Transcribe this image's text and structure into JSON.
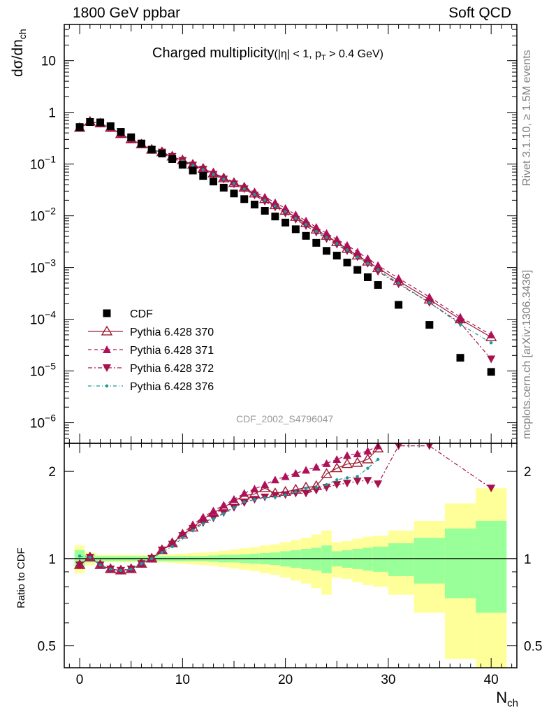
{
  "header": {
    "left": "1800 GeV ppbar",
    "right": "Soft QCD"
  },
  "plot": {
    "title_main": "Charged multiplicity",
    "title_sub": "(|η| < 1, p",
    "title_sub_T": "T",
    "title_sub_rest": " > 0.4 GeV)",
    "ylabel_main": "dσ/dn",
    "ylabel_sub": "ch",
    "analysis_id": "CDF_2002_S4796047"
  },
  "ratio": {
    "ylabel": "Ratio to CDF"
  },
  "xaxis": {
    "label_main": "N",
    "label_sub": "ch"
  },
  "side": {
    "rivet": "Rivet 3.1.10, ≥ 1.5M events",
    "mcplots": "mcplots.cern.ch [arXiv:1306.3436]"
  },
  "colors": {
    "data": "#000000",
    "p370": "#9b1b30",
    "p371": "#b0105a",
    "p372": "#a8124a",
    "p376": "#1a9a9a",
    "band_inner": "#99ff99",
    "band_outer": "#ffff99"
  },
  "chart_data": [
    {
      "type": "scatter",
      "name": "main",
      "yscale": "log",
      "xlim": [
        -1.5,
        42.5
      ],
      "ylim": [
        4e-07,
        50
      ],
      "ytick_labels": [
        "10^-6",
        "10^-5",
        "10^-4",
        "10^-3",
        "10^-2",
        "10^-1",
        "1",
        "10"
      ],
      "xtick_labels": [
        "0",
        "10",
        "20",
        "30",
        "40"
      ],
      "legend": {
        "position": "bottom-left",
        "entries": [
          "CDF",
          "Pythia 6.428 370",
          "Pythia 6.428 371",
          "Pythia 6.428 372",
          "Pythia 6.428 376"
        ]
      },
      "data": {
        "name": "CDF",
        "x": [
          0,
          1,
          2,
          3,
          4,
          5,
          6,
          7,
          8,
          9,
          10,
          11,
          12,
          13,
          14,
          15,
          16,
          17,
          18,
          19,
          20,
          21,
          22,
          23,
          24,
          25,
          26,
          27,
          28,
          29,
          31,
          34,
          37,
          40
        ],
        "y": [
          0.52,
          0.65,
          0.64,
          0.54,
          0.42,
          0.33,
          0.25,
          0.19,
          0.16,
          0.125,
          0.097,
          0.075,
          0.059,
          0.046,
          0.035,
          0.027,
          0.021,
          0.0165,
          0.0125,
          0.0097,
          0.0074,
          0.0055,
          0.0041,
          0.003,
          0.0021,
          0.0017,
          0.00125,
          0.0009,
          0.00065,
          0.00046,
          0.00019,
          7.8e-05,
          1.8e-05,
          9.6e-06
        ]
      },
      "series": [
        {
          "name": "Pythia 6.428 370",
          "marker": "open-triangle-up",
          "line": "solid",
          "x": [
            0,
            1,
            2,
            3,
            4,
            5,
            6,
            7,
            8,
            9,
            10,
            11,
            12,
            13,
            14,
            15,
            16,
            17,
            18,
            19,
            20,
            21,
            22,
            23,
            24,
            25,
            26,
            27,
            28,
            29,
            31,
            34,
            37,
            40
          ],
          "y": [
            0.5,
            0.66,
            0.61,
            0.5,
            0.38,
            0.3,
            0.24,
            0.19,
            0.17,
            0.14,
            0.118,
            0.097,
            0.081,
            0.066,
            0.053,
            0.043,
            0.035,
            0.027,
            0.021,
            0.016,
            0.0125,
            0.0095,
            0.0072,
            0.0054,
            0.0041,
            0.0031,
            0.0023,
            0.0017,
            0.0013,
            0.00098,
            0.00055,
            0.00024,
            0.0001,
            4.5e-05
          ]
        },
        {
          "name": "Pythia 6.428 371",
          "marker": "filled-triangle-up",
          "line": "dashed",
          "x": [
            0,
            1,
            2,
            3,
            4,
            5,
            6,
            7,
            8,
            9,
            10,
            11,
            12,
            13,
            14,
            15,
            16,
            17,
            18,
            19,
            20,
            21,
            22,
            23,
            24,
            25,
            26,
            27,
            28,
            29,
            31,
            34,
            37,
            40
          ],
          "y": [
            0.5,
            0.66,
            0.61,
            0.5,
            0.38,
            0.3,
            0.24,
            0.19,
            0.17,
            0.14,
            0.118,
            0.098,
            0.082,
            0.067,
            0.055,
            0.045,
            0.036,
            0.029,
            0.023,
            0.018,
            0.014,
            0.0105,
            0.008,
            0.006,
            0.0046,
            0.0035,
            0.0027,
            0.002,
            0.0015,
            0.0011,
            0.00062,
            0.00027,
            0.00011,
            5e-05
          ]
        },
        {
          "name": "Pythia 6.428 372",
          "marker": "filled-triangle-down",
          "line": "dash-dot",
          "x": [
            0,
            1,
            2,
            3,
            4,
            5,
            6,
            7,
            8,
            9,
            10,
            11,
            12,
            13,
            14,
            15,
            16,
            17,
            18,
            19,
            20,
            21,
            22,
            23,
            24,
            25,
            26,
            27,
            28,
            29,
            31,
            34,
            37,
            40
          ],
          "y": [
            0.5,
            0.66,
            0.61,
            0.5,
            0.38,
            0.3,
            0.24,
            0.19,
            0.17,
            0.14,
            0.117,
            0.095,
            0.079,
            0.063,
            0.051,
            0.041,
            0.033,
            0.025,
            0.019,
            0.0147,
            0.0112,
            0.0085,
            0.0064,
            0.0048,
            0.0036,
            0.0028,
            0.0021,
            0.0016,
            0.0012,
            0.00084,
            0.00048,
            0.00021,
            8.5e-05,
            1.7e-05
          ]
        },
        {
          "name": "Pythia 6.428 376",
          "marker": "dot",
          "line": "dash-dot",
          "x": [
            0,
            1,
            2,
            3,
            4,
            5,
            6,
            7,
            8,
            9,
            10,
            11,
            12,
            13,
            14,
            15,
            16,
            17,
            18,
            19,
            20,
            21,
            22,
            23,
            24,
            25,
            26,
            27,
            28,
            29,
            31,
            34,
            37,
            40
          ],
          "y": [
            0.53,
            0.66,
            0.61,
            0.5,
            0.38,
            0.3,
            0.24,
            0.19,
            0.165,
            0.138,
            0.115,
            0.094,
            0.078,
            0.063,
            0.051,
            0.042,
            0.033,
            0.026,
            0.02,
            0.0155,
            0.012,
            0.009,
            0.0068,
            0.005,
            0.0038,
            0.0029,
            0.0022,
            0.0016,
            0.0012,
            0.0009,
            0.0005,
            0.00021,
            8e-05,
            3.5e-05
          ]
        }
      ]
    },
    {
      "type": "scatter",
      "name": "ratio",
      "yscale": "log",
      "xlim": [
        -1.5,
        42.5
      ],
      "ylim": [
        0.42,
        2.5
      ],
      "ytick_labels": [
        "0.5",
        "1",
        "2"
      ],
      "xtick_labels": [
        "0",
        "10",
        "20",
        "30",
        "40"
      ],
      "band_x_edges": [
        -0.5,
        0.5,
        1.5,
        2.5,
        3.5,
        4.5,
        5.5,
        6.5,
        7.5,
        8.5,
        9.5,
        10.5,
        11.5,
        12.5,
        13.5,
        14.5,
        15.5,
        16.5,
        17.5,
        18.5,
        19.5,
        20.5,
        21.5,
        22.5,
        23.5,
        24.5,
        25.5,
        26.5,
        27.5,
        28.5,
        30,
        32.5,
        35.5,
        38.5,
        41.5
      ],
      "band_inner": [
        0.07,
        0.03,
        0.02,
        0.02,
        0.02,
        0.02,
        0.02,
        0.02,
        0.02,
        0.02,
        0.02,
        0.02,
        0.02,
        0.025,
        0.03,
        0.03,
        0.035,
        0.04,
        0.045,
        0.05,
        0.06,
        0.07,
        0.08,
        0.09,
        0.11,
        0.06,
        0.07,
        0.08,
        0.09,
        0.1,
        0.13,
        0.18,
        0.27,
        0.35
      ],
      "band_outer": [
        0.11,
        0.05,
        0.03,
        0.03,
        0.03,
        0.03,
        0.03,
        0.03,
        0.03,
        0.035,
        0.04,
        0.045,
        0.05,
        0.055,
        0.065,
        0.075,
        0.085,
        0.095,
        0.11,
        0.12,
        0.14,
        0.16,
        0.18,
        0.21,
        0.25,
        0.14,
        0.15,
        0.17,
        0.19,
        0.2,
        0.25,
        0.35,
        0.55,
        0.75
      ],
      "series": [
        {
          "name": "Pythia 6.428 370",
          "x": [
            0,
            1,
            2,
            3,
            4,
            5,
            6,
            7,
            8,
            9,
            10,
            11,
            12,
            13,
            14,
            15,
            16,
            17,
            18,
            19,
            20,
            21,
            22,
            23,
            24,
            25,
            26,
            27,
            28,
            29
          ],
          "y": [
            0.95,
            1.01,
            0.95,
            0.92,
            0.91,
            0.92,
            0.96,
            1.0,
            1.07,
            1.13,
            1.21,
            1.28,
            1.37,
            1.44,
            1.5,
            1.58,
            1.65,
            1.67,
            1.75,
            1.68,
            1.7,
            1.73,
            1.76,
            1.78,
            1.96,
            2.05,
            2.12,
            2.14,
            2.2,
            2.4
          ]
        },
        {
          "name": "Pythia 6.428 371",
          "x": [
            0,
            1,
            2,
            3,
            4,
            5,
            6,
            7,
            8,
            9,
            10,
            11,
            12,
            13,
            14,
            15,
            16,
            17,
            18,
            19,
            20,
            21,
            22,
            23,
            24,
            25,
            26,
            27,
            28,
            29
          ],
          "y": [
            0.95,
            1.01,
            0.95,
            0.92,
            0.91,
            0.92,
            0.96,
            1.0,
            1.07,
            1.13,
            1.22,
            1.31,
            1.39,
            1.46,
            1.53,
            1.6,
            1.68,
            1.74,
            1.8,
            1.87,
            1.92,
            1.97,
            2.02,
            2.07,
            2.13,
            2.2,
            2.27,
            2.3,
            2.35,
            2.45
          ]
        },
        {
          "name": "Pythia 6.428 372",
          "x": [
            0,
            1,
            2,
            3,
            4,
            5,
            6,
            7,
            8,
            9,
            10,
            11,
            12,
            13,
            14,
            15,
            16,
            17,
            18,
            19,
            20,
            21,
            22,
            23,
            24,
            25,
            26,
            27,
            28,
            29,
            31,
            34,
            40
          ],
          "y": [
            0.95,
            1.01,
            0.95,
            0.92,
            0.91,
            0.92,
            0.96,
            1.0,
            1.07,
            1.12,
            1.2,
            1.27,
            1.33,
            1.38,
            1.44,
            1.5,
            1.56,
            1.6,
            1.63,
            1.65,
            1.66,
            1.68,
            1.68,
            1.72,
            1.76,
            1.8,
            1.82,
            1.85,
            1.86,
            1.81,
            2.45,
            2.45,
            1.75
          ]
        },
        {
          "name": "Pythia 6.428 376",
          "x": [
            0,
            1,
            2,
            3,
            4,
            5,
            6,
            7,
            8,
            9,
            10,
            11,
            12,
            13,
            14,
            15,
            16,
            17,
            18,
            19,
            20,
            21,
            22,
            23,
            24,
            25,
            26,
            27,
            28,
            29
          ],
          "y": [
            1.02,
            1.01,
            0.95,
            0.92,
            0.91,
            0.92,
            0.96,
            1.0,
            1.05,
            1.1,
            1.18,
            1.25,
            1.32,
            1.37,
            1.43,
            1.5,
            1.57,
            1.6,
            1.62,
            1.63,
            1.66,
            1.7,
            1.75,
            1.76,
            1.8,
            1.87,
            1.9,
            1.92,
            2.05,
            2.2
          ]
        }
      ]
    }
  ]
}
